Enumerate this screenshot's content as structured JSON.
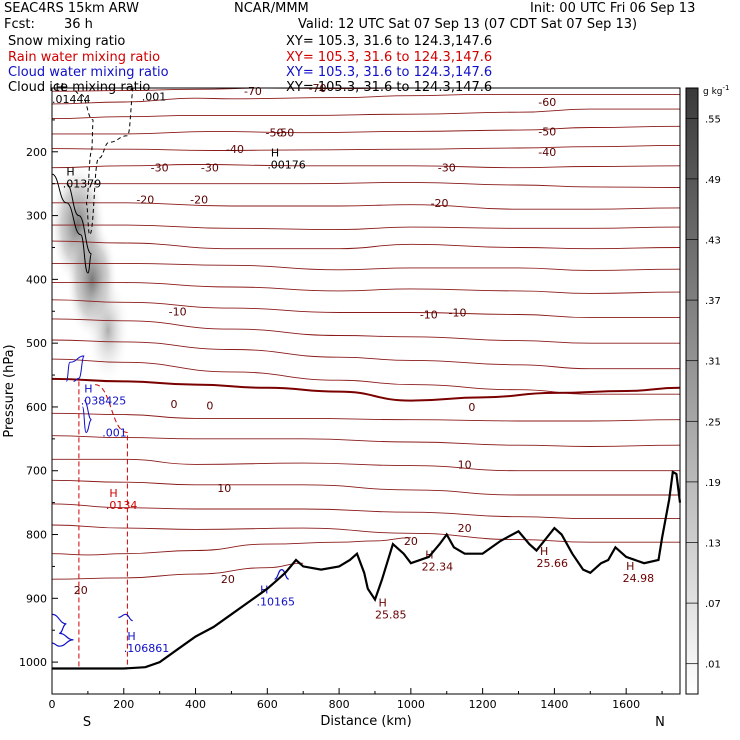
{
  "header": {
    "model": "SEAC4RS 15km ARW",
    "center": "NCAR/MMM",
    "init": "Init: 00 UTC Fri 06 Sep 13",
    "fcst_label": "Fcst:",
    "fcst_value": "36 h",
    "valid": "Valid: 12 UTC Sat 07 Sep 13 (07 CDT Sat 07 Sep 13)"
  },
  "fields": [
    {
      "name": "Snow mixing ratio",
      "xy": "XY= 105.3, 31.6 to 124.3,147.6",
      "color": "#000000"
    },
    {
      "name": "Rain water mixing ratio",
      "xy": "XY= 105.3, 31.6 to 124.3,147.6",
      "color": "#d00000"
    },
    {
      "name": "Cloud water mixing ratio",
      "xy": "XY= 105.3, 31.6 to 124.3,147.6",
      "color": "#1010c8"
    },
    {
      "name": "Cloud ice mixing ratio",
      "xy": "XY= 105.3, 31.6 to 124.3,147.6",
      "color": "#000000"
    }
  ],
  "chart_data": {
    "type": "contour",
    "xlabel": "Distance (km)",
    "ylabel": "Pressure (hPa)",
    "xlim": [
      0,
      1750
    ],
    "ylim": [
      1050,
      100
    ],
    "x_ticks": [
      0,
      200,
      400,
      600,
      800,
      1000,
      1200,
      1400,
      1600
    ],
    "y_ticks": [
      200,
      300,
      400,
      500,
      600,
      700,
      800,
      900,
      1000
    ],
    "x_ends": {
      "left": "S",
      "right": "N"
    },
    "colorbar": {
      "unit": "g kg",
      "unit_sup": "-1",
      "levels": [
        ".01",
        ".07",
        ".13",
        ".19",
        ".25",
        ".31",
        ".37",
        ".43",
        ".49",
        ".55"
      ]
    },
    "temperature_labels": [
      "-70",
      "-70",
      "-60",
      "-50",
      "-50",
      "-50",
      "-40",
      "-40",
      "-30",
      "-30",
      "-30",
      "-20",
      "-20",
      "-20",
      "-10",
      "-10",
      "-10",
      "0",
      "0",
      "0",
      "10",
      "10",
      "20",
      "20",
      "20",
      "20"
    ],
    "extrema": [
      {
        "mark": "H",
        "value": ".01444",
        "color": "black"
      },
      {
        "mark": "H",
        "value": ".01379",
        "color": "black"
      },
      {
        "mark": "H",
        "value": ".00176",
        "color": "black"
      },
      {
        "mark": "",
        "value": ".001",
        "color": "black"
      },
      {
        "mark": "H",
        "value": ".038425",
        "color": "blue"
      },
      {
        "mark": "",
        "value": ".001",
        "color": "blue"
      },
      {
        "mark": "H",
        "value": ".0134",
        "color": "red"
      },
      {
        "mark": "H",
        "value": ".10165",
        "color": "blue"
      },
      {
        "mark": "H",
        "value": ".106861",
        "color": "blue"
      },
      {
        "mark": "H",
        "value": "25.85",
        "color": "darkred"
      },
      {
        "mark": "H",
        "value": "22.34",
        "color": "darkred"
      },
      {
        "mark": "H",
        "value": "25.66",
        "color": "darkred"
      },
      {
        "mark": "H",
        "value": "24.98",
        "color": "darkred"
      }
    ],
    "terrain_profile": [
      [
        0,
        1010
      ],
      [
        50,
        1010
      ],
      [
        100,
        1010
      ],
      [
        150,
        1010
      ],
      [
        200,
        1010
      ],
      [
        260,
        1008
      ],
      [
        300,
        1000
      ],
      [
        350,
        980
      ],
      [
        400,
        960
      ],
      [
        450,
        945
      ],
      [
        500,
        925
      ],
      [
        550,
        905
      ],
      [
        600,
        885
      ],
      [
        620,
        875
      ],
      [
        650,
        860
      ],
      [
        680,
        840
      ],
      [
        700,
        850
      ],
      [
        750,
        855
      ],
      [
        800,
        850
      ],
      [
        830,
        840
      ],
      [
        850,
        830
      ],
      [
        870,
        860
      ],
      [
        880,
        885
      ],
      [
        900,
        902
      ],
      [
        920,
        870
      ],
      [
        950,
        815
      ],
      [
        980,
        830
      ],
      [
        1000,
        845
      ],
      [
        1050,
        835
      ],
      [
        1080,
        815
      ],
      [
        1100,
        800
      ],
      [
        1120,
        820
      ],
      [
        1150,
        830
      ],
      [
        1200,
        830
      ],
      [
        1250,
        810
      ],
      [
        1300,
        795
      ],
      [
        1330,
        815
      ],
      [
        1350,
        825
      ],
      [
        1400,
        790
      ],
      [
        1420,
        800
      ],
      [
        1450,
        830
      ],
      [
        1480,
        855
      ],
      [
        1500,
        860
      ],
      [
        1530,
        845
      ],
      [
        1550,
        840
      ],
      [
        1570,
        820
      ],
      [
        1600,
        835
      ],
      [
        1650,
        845
      ],
      [
        1690,
        840
      ],
      [
        1700,
        805
      ],
      [
        1720,
        745
      ],
      [
        1730,
        702
      ],
      [
        1740,
        705
      ],
      [
        1750,
        750
      ]
    ],
    "colors": {
      "isotherm": "#8b1a1a",
      "freezing": "#7a0000",
      "terrain": "#000000"
    }
  }
}
